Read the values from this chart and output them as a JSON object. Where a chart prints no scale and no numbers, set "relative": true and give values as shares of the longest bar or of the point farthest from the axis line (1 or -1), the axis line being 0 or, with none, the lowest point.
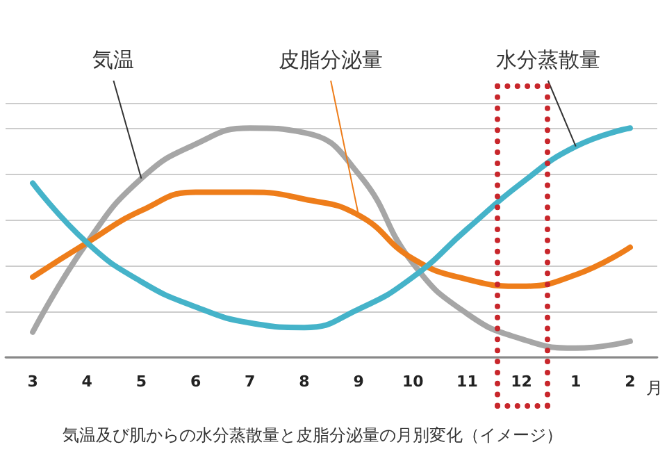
{
  "chart_data": {
    "type": "line",
    "relative": true,
    "title": "気温及び肌からの水分蒸散量と皮脂分泌量の月別変化（イメージ）",
    "xlabel": "月",
    "categories": [
      "3",
      "4",
      "5",
      "6",
      "7",
      "8",
      "9",
      "10",
      "11",
      "12",
      "1",
      "2"
    ],
    "series": [
      {
        "name": "気温",
        "color": "#a6a6a6",
        "values": [
          0.11,
          0.5,
          0.78,
          0.93,
          1.0,
          0.98,
          0.8,
          0.41,
          0.19,
          0.08,
          0.04,
          0.07
        ]
      },
      {
        "name": "皮脂分泌量",
        "color": "#ee7d1a",
        "values": [
          0.35,
          0.5,
          0.64,
          0.72,
          0.72,
          0.69,
          0.62,
          0.43,
          0.34,
          0.31,
          0.36,
          0.48
        ]
      },
      {
        "name": "水分蒸散量",
        "color": "#45b3c9",
        "values": [
          0.76,
          0.5,
          0.33,
          0.22,
          0.15,
          0.13,
          0.21,
          0.35,
          0.56,
          0.76,
          0.92,
          1.0
        ]
      }
    ],
    "grid": "y",
    "legend": false,
    "marker": "none",
    "line_style": "solid"
  }
}
